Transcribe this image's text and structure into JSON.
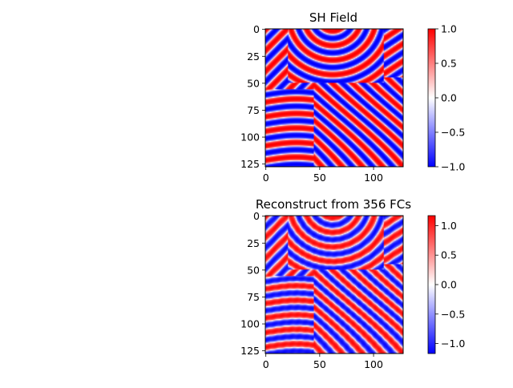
{
  "chart_data": [
    {
      "type": "heatmap",
      "title": "SH Field",
      "xlabel": "",
      "ylabel": "",
      "x_ticks": [
        "0",
        "50",
        "100"
      ],
      "y_ticks": [
        "0",
        "25",
        "50",
        "75",
        "100",
        "125"
      ],
      "xlim": [
        0,
        127
      ],
      "ylim": [
        127,
        0
      ],
      "grid": "off",
      "colormap": [
        "#0000ff",
        "#ffffff",
        "#ff0000"
      ],
      "colorbar": {
        "range": [
          -1.0,
          1.0
        ],
        "ticks": [
          "1.0",
          "0.5",
          "0.0",
          "−0.5",
          "−1.0"
        ]
      },
      "description": "Swift-Hohenberg labyrinthine stripe pattern, values in [-1, 1]"
    },
    {
      "type": "heatmap",
      "title": "Reconstruct from 356 FCs",
      "xlabel": "",
      "ylabel": "",
      "x_ticks": [
        "0",
        "50",
        "100"
      ],
      "y_ticks": [
        "0",
        "25",
        "50",
        "75",
        "100",
        "125"
      ],
      "xlim": [
        0,
        127
      ],
      "ylim": [
        127,
        0
      ],
      "grid": "off",
      "colormap": [
        "#0000ff",
        "#ffffff",
        "#ff0000"
      ],
      "colorbar": {
        "range": [
          -1.17,
          1.17
        ],
        "ticks": [
          "1.0",
          "0.5",
          "0.0",
          "−0.5",
          "−1.0"
        ]
      },
      "description": "Fourier reconstruction of the same stripe pattern from 356 coefficients"
    }
  ]
}
